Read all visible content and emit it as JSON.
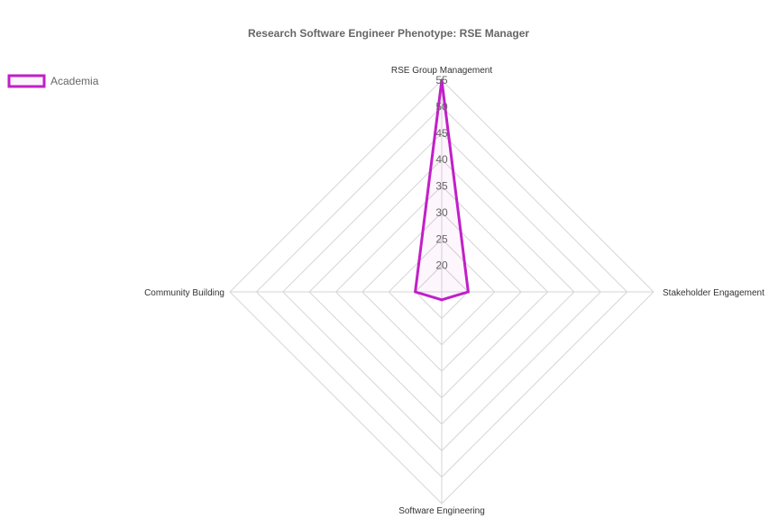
{
  "chart_data": {
    "type": "radar",
    "title": "Research Software Engineer Phenotype: RSE Manager",
    "axes": [
      "RSE Group Management",
      "Stakeholder Engagement",
      "Software Engineering",
      "Community Building"
    ],
    "r_ticks": [
      20,
      25,
      30,
      35,
      40,
      45,
      50,
      55
    ],
    "r_range": [
      15,
      55
    ],
    "grid": true,
    "legend_position": "top-left",
    "series": [
      {
        "name": "Academia",
        "values": [
          55,
          20,
          16.5,
          20
        ],
        "color": "#c11fc8"
      }
    ]
  }
}
